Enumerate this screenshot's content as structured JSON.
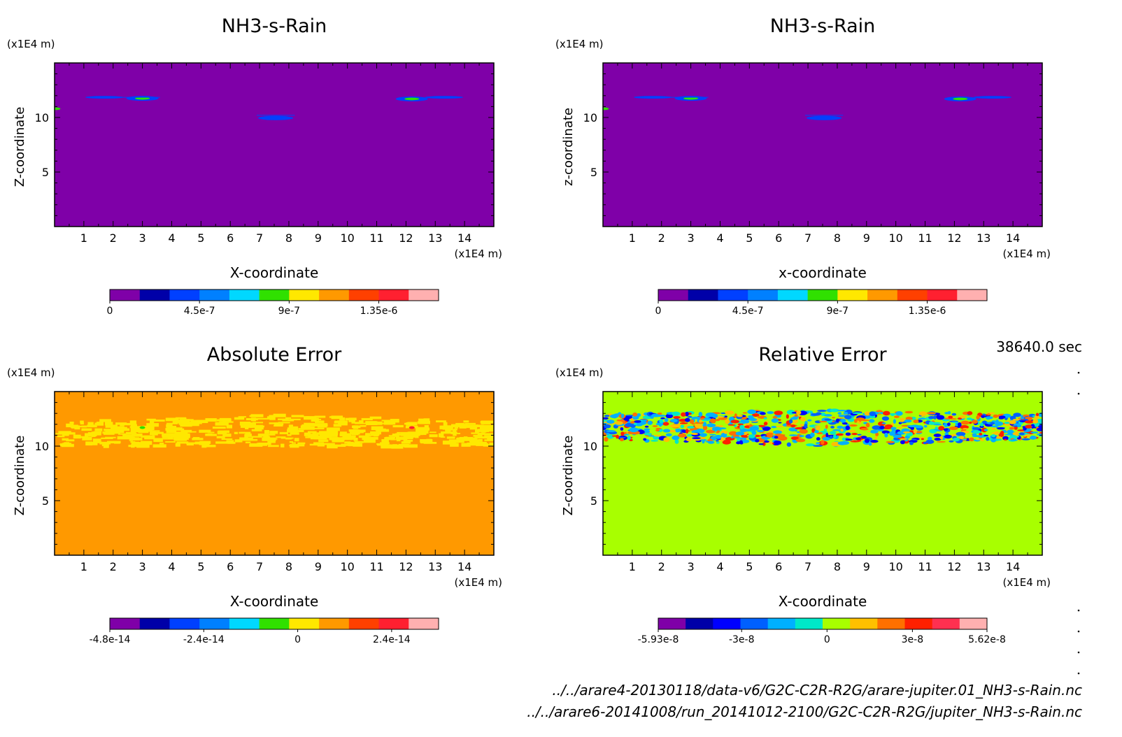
{
  "time_label": "38640.0 sec",
  "files": [
    "../../arare4-20130118/data-v6/G2C-C2R-R2G/arare-jupiter.01_NH3-s-Rain.nc",
    "../../arare6-20141008/run_20141012-2100/G2C-C2R-R2G/jupiter_NH3-s-Rain.nc"
  ],
  "chart_data": [
    {
      "type": "heatmap",
      "title": "NH3-s-Rain",
      "xlabel": "X-coordinate",
      "ylabel": "Z-coordinate",
      "x_unit": "(x1E4 m)",
      "y_unit": "(x1E4 m)",
      "xlim": [
        0,
        15
      ],
      "ylim": [
        0,
        15
      ],
      "x_ticks": [
        "1",
        "2",
        "3",
        "4",
        "5",
        "6",
        "7",
        "8",
        "9",
        "10",
        "11",
        "12",
        "13",
        "14"
      ],
      "y_ticks": [
        "5",
        "10"
      ],
      "background_color": "#7f00a8",
      "colorbar": {
        "colors": [
          "#7f00a8",
          "#0000a8",
          "#0040ff",
          "#0080ff",
          "#00d8ff",
          "#30e000",
          "#ffe800",
          "#ff9900",
          "#ff4000",
          "#ff2030",
          "#ffb0b0"
        ],
        "tick_labels": [
          "0",
          "4.5e-7",
          "9e-7",
          "1.35e-6"
        ],
        "tick_values": [
          0,
          4.5e-07,
          9e-07,
          1.35e-06
        ],
        "range": [
          0,
          1.65e-06
        ]
      }
    },
    {
      "type": "heatmap",
      "title": "NH3-s-Rain",
      "xlabel": "x-coordinate",
      "ylabel": "z-coordinate",
      "x_unit": "(x1E4 m)",
      "y_unit": "(x1E4 m)",
      "xlim": [
        0,
        15
      ],
      "ylim": [
        0,
        15
      ],
      "x_ticks": [
        "1",
        "2",
        "3",
        "4",
        "5",
        "6",
        "7",
        "8",
        "9",
        "10",
        "11",
        "12",
        "13",
        "14"
      ],
      "y_ticks": [
        "5",
        "10"
      ],
      "background_color": "#7f00a8",
      "colorbar": {
        "colors": [
          "#7f00a8",
          "#0000a8",
          "#0040ff",
          "#0080ff",
          "#00d8ff",
          "#30e000",
          "#ffe800",
          "#ff9900",
          "#ff4000",
          "#ff2030",
          "#ffb0b0"
        ],
        "tick_labels": [
          "0",
          "4.5e-7",
          "9e-7",
          "1.35e-6"
        ],
        "tick_values": [
          0,
          4.5e-07,
          9e-07,
          1.35e-06
        ],
        "range": [
          0,
          1.65e-06
        ]
      }
    },
    {
      "type": "heatmap",
      "title": "Absolute Error",
      "xlabel": "X-coordinate",
      "ylabel": "Z-coordinate",
      "x_unit": "(x1E4 m)",
      "y_unit": "(x1E4 m)",
      "xlim": [
        0,
        15
      ],
      "ylim": [
        0,
        15
      ],
      "x_ticks": [
        "1",
        "2",
        "3",
        "4",
        "5",
        "6",
        "7",
        "8",
        "9",
        "10",
        "11",
        "12",
        "13",
        "14"
      ],
      "y_ticks": [
        "5",
        "10"
      ],
      "background_color": "#ff9900",
      "colorbar": {
        "colors": [
          "#7f00a8",
          "#0000a8",
          "#0040ff",
          "#0080ff",
          "#00d8ff",
          "#30e000",
          "#ffe800",
          "#ff9900",
          "#ff4000",
          "#ff2030",
          "#ffb0b0"
        ],
        "tick_labels": [
          "-4.8e-14",
          "-2.4e-14",
          "0",
          "2.4e-14"
        ],
        "tick_values": [
          -4.8e-14,
          -2.4e-14,
          0,
          2.4e-14
        ],
        "range": [
          -4.8e-14,
          3.6e-14
        ]
      }
    },
    {
      "type": "heatmap",
      "title": "Relative Error",
      "xlabel": "X-coordinate",
      "ylabel": "Z-coordinate",
      "x_unit": "(x1E4 m)",
      "y_unit": "(x1E4 m)",
      "xlim": [
        0,
        15
      ],
      "ylim": [
        0,
        15
      ],
      "x_ticks": [
        "1",
        "2",
        "3",
        "4",
        "5",
        "6",
        "7",
        "8",
        "9",
        "10",
        "11",
        "12",
        "13",
        "14"
      ],
      "y_ticks": [
        "5",
        "10"
      ],
      "background_color": "#a8ff00",
      "colorbar": {
        "colors": [
          "#7f00a8",
          "#0000a8",
          "#0000ff",
          "#0060ff",
          "#00b0ff",
          "#00e8c8",
          "#a8ff00",
          "#ffc000",
          "#ff7000",
          "#ff2000",
          "#ff3050",
          "#ffb0b0"
        ],
        "tick_labels": [
          "-5.93e-8",
          "-3e-8",
          "0",
          "3e-8",
          "5.62e-8"
        ],
        "tick_values": [
          -5.93e-08,
          -3e-08,
          0,
          3e-08,
          5.62e-08
        ],
        "range": [
          -5.93e-08,
          5.62e-08
        ]
      }
    }
  ]
}
